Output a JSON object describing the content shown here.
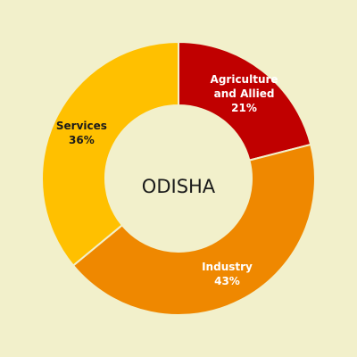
{
  "page": {
    "background": "#f2f0cb"
  },
  "chart_data": {
    "type": "pie",
    "variant": "donut",
    "center_label": "ODISHA",
    "slices": [
      {
        "label_lines": [
          "Agriculture",
          "and Allied"
        ],
        "value": 21,
        "value_label": "21%",
        "color": "#c00000",
        "text_color": "#ffffff"
      },
      {
        "label_lines": [
          "Industry"
        ],
        "value": 43,
        "value_label": "43%",
        "color": "#ef8800",
        "text_color": "#ffffff"
      },
      {
        "label_lines": [
          "Services"
        ],
        "value": 36,
        "value_label": "36%",
        "color": "#ffc000",
        "text_color": "#1a1a1a"
      }
    ],
    "start_angle_deg": 0,
    "direction": "clockwise",
    "separator_color": "#f2f0cb",
    "legend": "none"
  }
}
